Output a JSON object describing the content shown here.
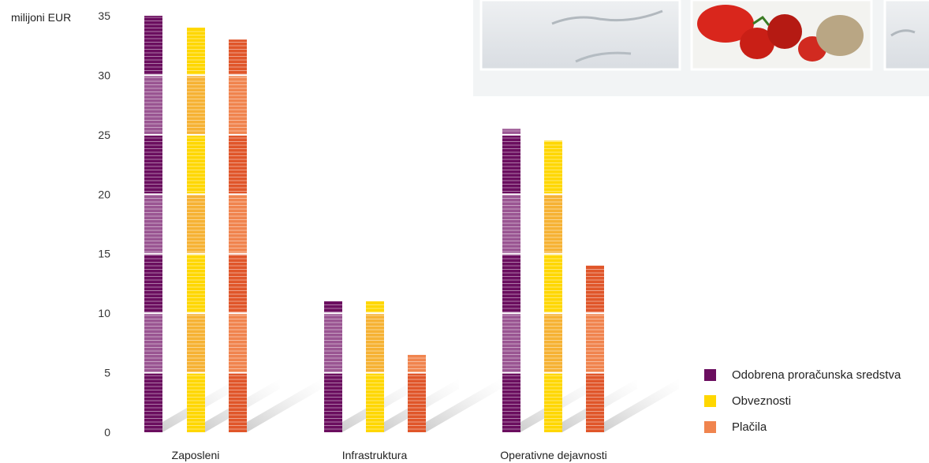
{
  "chart_data": {
    "type": "bar",
    "ylabel": "milijoni EUR",
    "ylim": [
      0,
      35
    ],
    "yticks": [
      0,
      5,
      10,
      15,
      20,
      25,
      30,
      35
    ],
    "categories": [
      "Zaposleni",
      "Infrastruktura",
      "Operativne dejavnosti"
    ],
    "series": [
      {
        "name": "Odobrena proračunska sredstva",
        "values": [
          35.0,
          11.0,
          25.5
        ],
        "color": "#6b0e5f",
        "color_alt": "#9a5592"
      },
      {
        "name": "Obveznosti",
        "values": [
          34.0,
          11.0,
          24.5
        ],
        "color": "#ffd700",
        "color_alt": "#f6b234"
      },
      {
        "name": "Plačila",
        "values": [
          33.0,
          6.5,
          14.0
        ],
        "color": "#e0562a",
        "color_alt": "#f0844e"
      }
    ],
    "legend_position": "bottom-right",
    "grid": false
  }
}
